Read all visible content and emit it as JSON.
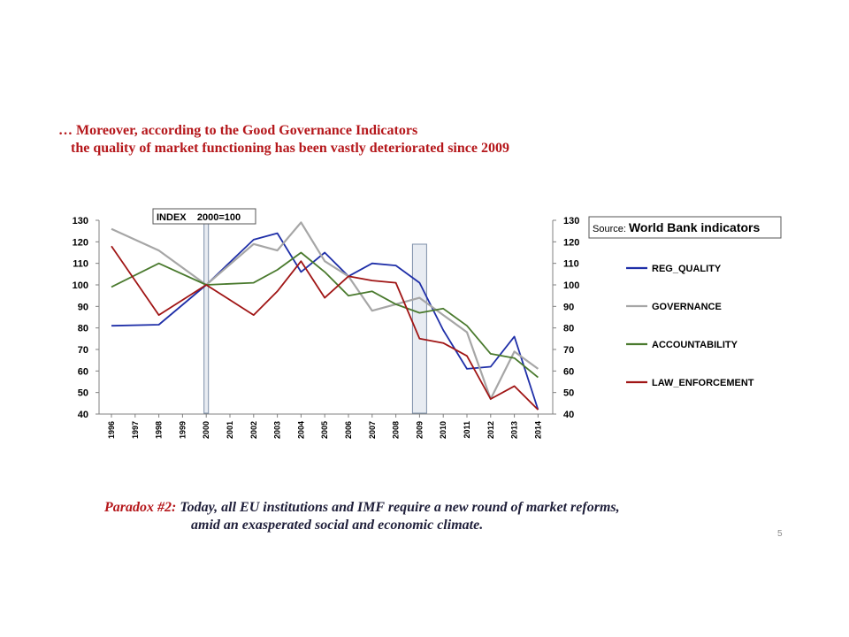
{
  "heading": {
    "line1": "… Moreover, according to the Good Governance Indicators",
    "line2": "the quality of market functioning has been vastly deteriorated since 2009"
  },
  "note": {
    "prefix": "Paradox #2:",
    "line1": " Today, all EU institutions and  IMF require a new round of market reforms,",
    "line2": "amid an exasperated social and economic climate."
  },
  "page_number": "5",
  "chart_data": {
    "type": "line",
    "index_label": "INDEX    2000=100",
    "source_prefix": "Source:",
    "source_name": "World Bank indicators",
    "ylim": [
      40,
      130
    ],
    "yticks": [
      40,
      50,
      60,
      70,
      80,
      90,
      100,
      110,
      120,
      130
    ],
    "categories": [
      "1996",
      "1997",
      "1998",
      "1999",
      "2000",
      "2001",
      "2002",
      "2003",
      "2004",
      "2005",
      "2006",
      "2007",
      "2008",
      "2009",
      "2010",
      "2011",
      "2012",
      "2013",
      "2014"
    ],
    "highlight_years": [
      "2000",
      "2009"
    ],
    "series": [
      {
        "name": "REG_QUALITY",
        "color": "#1f2fa8",
        "points": [
          [
            1996,
            81
          ],
          [
            1998,
            81.5
          ],
          [
            2000,
            100
          ],
          [
            2002,
            121
          ],
          [
            2003,
            124
          ],
          [
            2004,
            106
          ],
          [
            2005,
            115
          ],
          [
            2006,
            104
          ],
          [
            2007,
            110
          ],
          [
            2008,
            109
          ],
          [
            2009,
            101
          ],
          [
            2010,
            79
          ],
          [
            2011,
            61
          ],
          [
            2012,
            62
          ],
          [
            2013,
            76
          ],
          [
            2014,
            42
          ]
        ]
      },
      {
        "name": "GOVERNANCE",
        "color": "#a6a6a6",
        "points": [
          [
            1996,
            126
          ],
          [
            1998,
            116
          ],
          [
            2000,
            100
          ],
          [
            2002,
            119
          ],
          [
            2003,
            116
          ],
          [
            2004,
            129
          ],
          [
            2005,
            111
          ],
          [
            2006,
            104
          ],
          [
            2007,
            88
          ],
          [
            2008,
            91
          ],
          [
            2009,
            94
          ],
          [
            2010,
            86
          ],
          [
            2011,
            78
          ],
          [
            2012,
            47
          ],
          [
            2013,
            69
          ],
          [
            2014,
            61
          ]
        ]
      },
      {
        "name": "ACCOUNTABILITY",
        "color": "#4a7a2e",
        "points": [
          [
            1996,
            99
          ],
          [
            1998,
            110
          ],
          [
            2000,
            100
          ],
          [
            2002,
            101
          ],
          [
            2003,
            107
          ],
          [
            2004,
            115
          ],
          [
            2005,
            106
          ],
          [
            2006,
            95
          ],
          [
            2007,
            97
          ],
          [
            2008,
            91
          ],
          [
            2009,
            87
          ],
          [
            2010,
            89
          ],
          [
            2011,
            81
          ],
          [
            2012,
            68
          ],
          [
            2013,
            66
          ],
          [
            2014,
            57
          ]
        ]
      },
      {
        "name": "LAW_ENFORCEMENT",
        "color": "#a01515",
        "points": [
          [
            1996,
            118
          ],
          [
            1998,
            86
          ],
          [
            2000,
            100
          ],
          [
            2002,
            86
          ],
          [
            2003,
            97
          ],
          [
            2004,
            111
          ],
          [
            2005,
            94
          ],
          [
            2006,
            104
          ],
          [
            2007,
            102
          ],
          [
            2008,
            101
          ],
          [
            2009,
            75
          ],
          [
            2010,
            73
          ],
          [
            2011,
            67
          ],
          [
            2012,
            47
          ],
          [
            2013,
            53
          ],
          [
            2014,
            42
          ]
        ]
      }
    ]
  }
}
